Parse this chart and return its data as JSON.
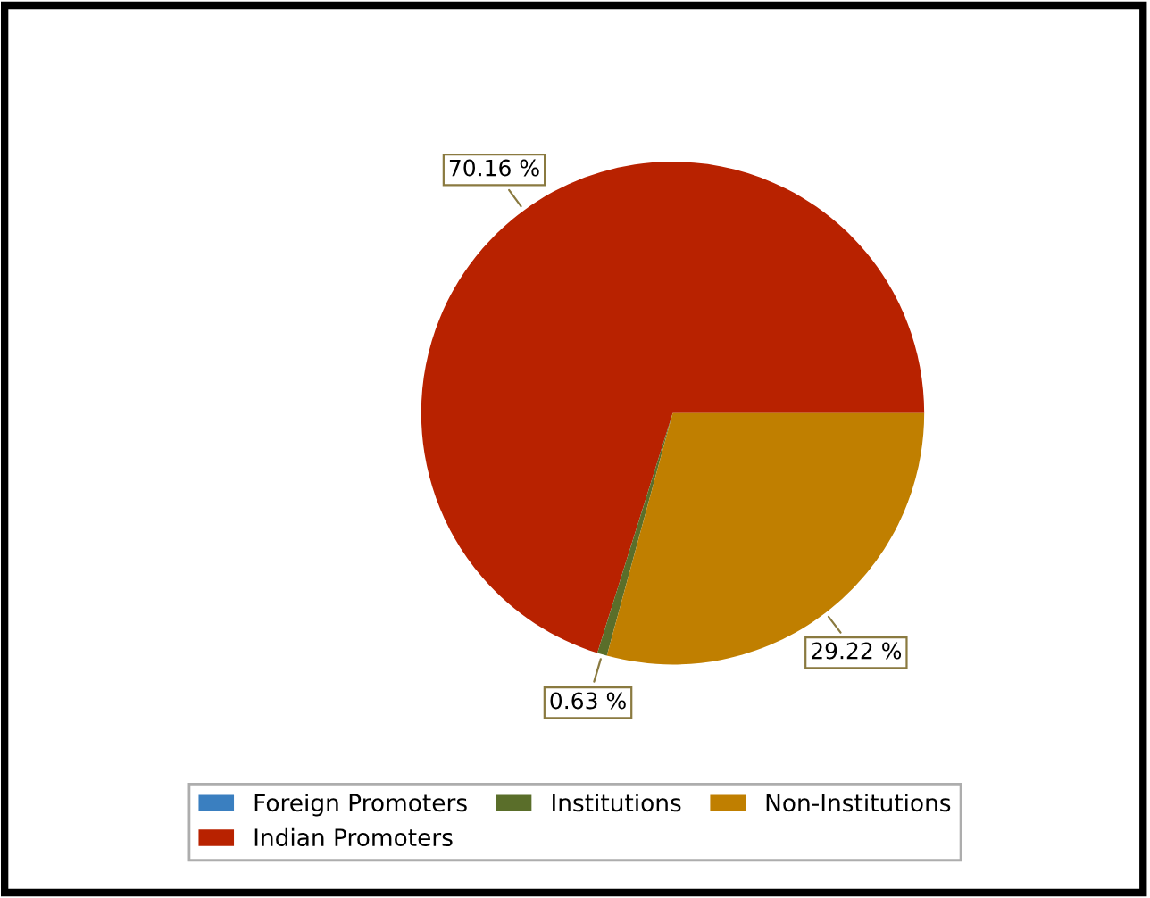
{
  "chart_data": {
    "type": "pie",
    "categories": [
      "Foreign Promoters",
      "Indian Promoters",
      "Institutions",
      "Non-Institutions"
    ],
    "values": [
      0,
      70.16,
      0.63,
      29.22
    ],
    "value_labels": [
      null,
      "70.16 %",
      "0.63 %",
      "29.22 %"
    ],
    "colors": [
      "#3a7fc0",
      "#b82200",
      "#5a6e2a",
      "#c07f00"
    ],
    "legend": "bottom"
  }
}
